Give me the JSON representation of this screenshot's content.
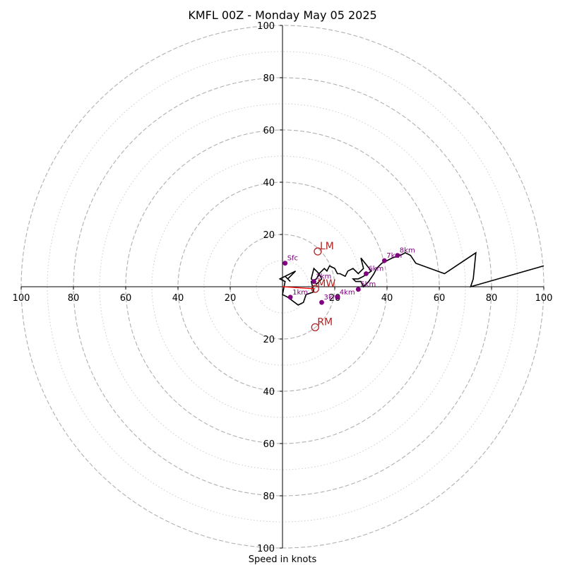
{
  "chart_data": {
    "type": "hodograph",
    "title": "KMFL 00Z - Monday May 05 2025",
    "xlabel": "Speed in knots",
    "ylabel": "",
    "xlim": [
      -100,
      100
    ],
    "ylim": [
      -100,
      100
    ],
    "x_tick_labels": [
      "100",
      "80",
      "60",
      "40",
      "20",
      "20",
      "40",
      "60",
      "80",
      "100"
    ],
    "y_tick_labels": [
      "100",
      "80",
      "60",
      "40",
      "20",
      "20",
      "40",
      "60",
      "80",
      "100"
    ],
    "ring_speeds_major": [
      20,
      40,
      60,
      80,
      100
    ],
    "ring_speeds_minor": [
      10,
      30,
      50,
      70,
      90
    ],
    "grid": true,
    "colors": {
      "trace": "#000000",
      "height_marker": "#800080",
      "motion": "#b22222",
      "mean_wind_vector": "#ff0000",
      "major_ring": "#b0b0b0",
      "minor_ring": "#cccccc"
    },
    "trace": {
      "u": [
        1,
        3,
        2,
        5,
        -1,
        1,
        0,
        2,
        6,
        8,
        9,
        12,
        11,
        13,
        14,
        12,
        11,
        13,
        15,
        14,
        16,
        17,
        18,
        20,
        21,
        22,
        24,
        25,
        27,
        29,
        31,
        30,
        34,
        31,
        29,
        27,
        28,
        30,
        31,
        33,
        35,
        36,
        38,
        40,
        42,
        45,
        47,
        49,
        51,
        62,
        74,
        73,
        72,
        100
      ],
      "v": [
        -4,
        -2,
        -3,
        -6,
        -3,
        -2,
        3,
        4,
        7,
        6,
        3,
        2,
        -2,
        -3,
        -5,
        -7,
        -3,
        -1,
        -3,
        -5,
        -7,
        -6,
        -8,
        -7,
        -5,
        -5,
        -4,
        -6,
        -7,
        -5,
        -7,
        -11,
        -6,
        -4,
        -3,
        -3,
        -2,
        -2,
        0,
        -2,
        -5,
        -7,
        -9,
        -10,
        -11,
        -12,
        -13,
        -12,
        -9,
        -5,
        -13,
        -3,
        0,
        -8
      ]
    },
    "height_markers": [
      {
        "label": "Sfc",
        "u": 1,
        "v": -9
      },
      {
        "label": "1km",
        "u": 3,
        "v": 4
      },
      {
        "label": "2km",
        "u": 12,
        "v": -2
      },
      {
        "label": "3km",
        "u": 15,
        "v": 6
      },
      {
        "label": "4km",
        "u": 21,
        "v": 4
      },
      {
        "label": "5km",
        "u": 29,
        "v": 1
      },
      {
        "label": "6km",
        "u": 32,
        "v": -5
      },
      {
        "label": "7km",
        "u": 39,
        "v": -10
      },
      {
        "label": "8km",
        "u": 44,
        "v": -12
      }
    ],
    "storm_motion": [
      {
        "label": "LM",
        "u": 13.5,
        "v": -13.5
      },
      {
        "label": "MW",
        "u": 12.5,
        "v": 0.8
      },
      {
        "label": "RM",
        "u": 12.5,
        "v": 15.5
      }
    ],
    "mean_wind_vector": {
      "u": 12.5,
      "v": 0.8
    }
  }
}
